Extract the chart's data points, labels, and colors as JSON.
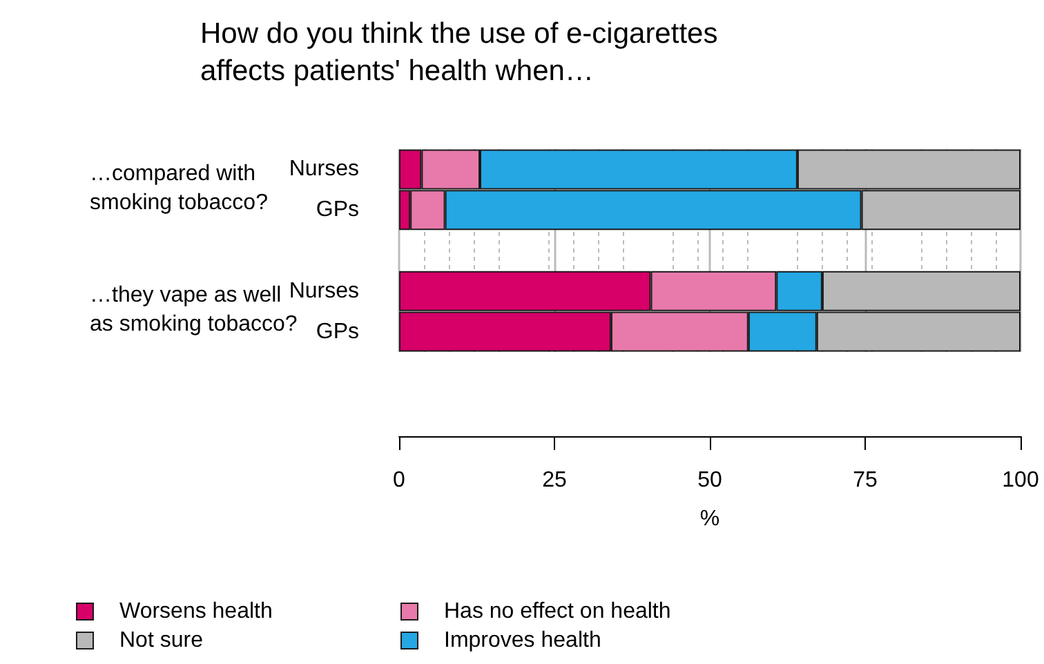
{
  "chart_data": {
    "type": "bar",
    "orientation": "horizontal",
    "stacked": true,
    "title": "How do you think the use of e-cigarettes affects patients' health when…",
    "categories": [
      "Nurses",
      "GPs",
      null,
      "Nurses",
      "GPs"
    ],
    "annotations": [
      "…compared with smoking tobacco?",
      "…they vape as well as smoking tobacco?"
    ],
    "xlabel": "%",
    "series": [
      {
        "name": "Worsens health",
        "color": "#d60068",
        "values": [
          3.6,
          1.8,
          null,
          40.5,
          34.1
        ]
      },
      {
        "name": "Has no effect on health",
        "color": "#e87aab",
        "values": [
          9.4,
          5.6,
          null,
          20.2,
          22.1
        ]
      },
      {
        "name": "Improves health",
        "color": "#24a7e3",
        "values": [
          51.1,
          67.0,
          null,
          7.4,
          11.0
        ]
      },
      {
        "name": "Not sure",
        "color": "#b8b8b8",
        "values": [
          35.9,
          25.6,
          null,
          31.9,
          32.8
        ]
      }
    ],
    "xlim": [
      0,
      100
    ],
    "xticks": [
      0,
      25,
      50,
      75,
      100
    ],
    "grid": "x",
    "legend": "bottom left"
  }
}
